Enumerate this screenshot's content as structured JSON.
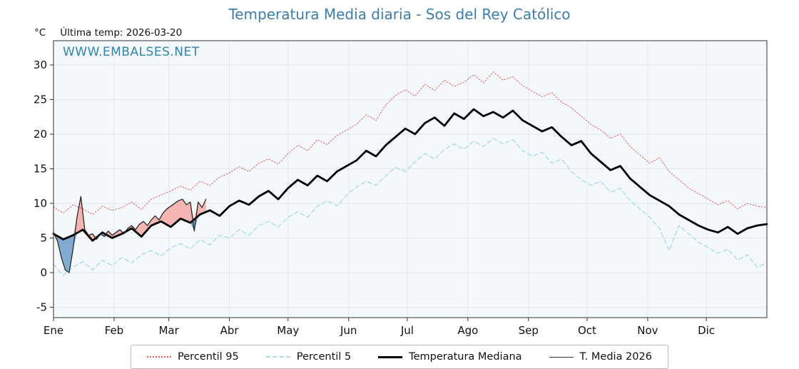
{
  "title": "Temperatura Media diaria - Sos del Rey Católico",
  "header": {
    "y_unit_label": "°C",
    "last_temp_label": "Última temp: 2026-03-20"
  },
  "watermark": "WWW.EMBALSES.NET",
  "colors": {
    "title_blue": "#3d7eaa",
    "watermark_blue": "#2f84ad",
    "plot_bg": "#f4f8fa",
    "grid": "#e2e9ee",
    "border": "#333333",
    "percentil95": "#e05c5c",
    "percentil5": "#a8d9e9",
    "mediana": "#000000",
    "t_media_2026": "#2a2a2a"
  },
  "chart_data": {
    "type": "line",
    "title": "Temperatura Media diaria - Sos del Rey Católico",
    "xlabel": "",
    "ylabel": "°C",
    "grid": true,
    "legend_position": "bottom",
    "x_unit": "day_of_year",
    "xlim": [
      1,
      366
    ],
    "ylim": [
      -6.5,
      33.5
    ],
    "y_ticks": [
      -5,
      0,
      5,
      10,
      15,
      20,
      25,
      30
    ],
    "x_tick_labels": [
      "Ene",
      "Feb",
      "Mar",
      "Abr",
      "May",
      "Jun",
      "Jul",
      "Ago",
      "Sep",
      "Oct",
      "Nov",
      "Dic"
    ],
    "month_start_days": [
      1,
      32,
      60,
      91,
      121,
      152,
      182,
      213,
      244,
      274,
      305,
      335
    ],
    "fill_above_color": "#f4a9a4",
    "fill_below_color": "#6f9ec9",
    "fill_note": "T. Media 2026 filled pink where above Temperatura Mediana, blue where below",
    "series": [
      {
        "name": "Percentil 95",
        "color": "#e05c5c",
        "style": "dotted",
        "width": 1,
        "day_start": 1,
        "day_step": 5,
        "values": [
          9.5,
          8.6,
          9.8,
          9.2,
          8.4,
          9.6,
          9.0,
          9.4,
          10.2,
          9.1,
          10.6,
          11.2,
          11.8,
          12.5,
          11.9,
          13.2,
          12.6,
          13.8,
          14.4,
          15.3,
          14.6,
          15.8,
          16.4,
          15.7,
          17.2,
          18.4,
          17.6,
          19.2,
          18.5,
          19.8,
          20.6,
          21.4,
          22.8,
          22.0,
          24.2,
          25.6,
          26.4,
          25.5,
          27.2,
          26.3,
          27.8,
          26.9,
          27.5,
          28.6,
          27.4,
          29.0,
          27.8,
          28.3,
          27.0,
          26.2,
          25.4,
          26.0,
          24.6,
          23.8,
          22.6,
          21.4,
          20.6,
          19.4,
          20.0,
          18.2,
          17.0,
          15.8,
          16.6,
          14.6,
          13.4,
          12.2,
          11.4,
          10.6,
          9.8,
          10.4,
          9.2,
          10.0,
          9.6,
          9.4
        ]
      },
      {
        "name": "Percentil 5",
        "color": "#a8d9e9",
        "style": "dashed",
        "width": 1.3,
        "day_start": 1,
        "day_step": 5,
        "values": [
          1.2,
          -0.4,
          0.8,
          1.6,
          0.4,
          1.8,
          1.0,
          2.2,
          1.4,
          2.6,
          3.2,
          2.4,
          3.6,
          4.2,
          3.4,
          4.8,
          4.0,
          5.4,
          5.0,
          6.2,
          5.4,
          6.8,
          7.4,
          6.6,
          8.0,
          8.8,
          8.0,
          9.6,
          10.4,
          9.6,
          11.2,
          12.4,
          13.2,
          12.6,
          14.0,
          15.2,
          14.6,
          16.0,
          17.2,
          16.4,
          17.8,
          18.6,
          17.8,
          19.0,
          18.2,
          19.4,
          18.6,
          19.2,
          17.6,
          16.8,
          17.4,
          15.8,
          16.4,
          14.6,
          13.4,
          12.6,
          13.2,
          11.6,
          12.2,
          10.4,
          9.2,
          8.0,
          6.4,
          3.2,
          6.8,
          5.6,
          4.4,
          3.6,
          2.8,
          3.4,
          1.8,
          2.6,
          0.8,
          1.4
        ]
      },
      {
        "name": "Temperatura Mediana",
        "color": "#000000",
        "style": "solid",
        "width": 2.8,
        "day_start": 1,
        "day_step": 5,
        "values": [
          5.6,
          4.8,
          5.4,
          6.2,
          4.6,
          5.8,
          5.0,
          5.6,
          6.4,
          5.2,
          6.8,
          7.4,
          6.6,
          7.8,
          7.2,
          8.4,
          9.0,
          8.2,
          9.6,
          10.4,
          9.8,
          11.0,
          11.8,
          10.6,
          12.2,
          13.4,
          12.6,
          14.0,
          13.2,
          14.6,
          15.4,
          16.2,
          17.6,
          16.8,
          18.4,
          19.6,
          20.8,
          20.0,
          21.6,
          22.4,
          21.2,
          23.0,
          22.2,
          23.6,
          22.6,
          23.2,
          22.4,
          23.4,
          22.0,
          21.2,
          20.4,
          21.0,
          19.6,
          18.4,
          19.0,
          17.2,
          16.0,
          14.8,
          15.4,
          13.6,
          12.4,
          11.2,
          10.4,
          9.6,
          8.4,
          7.6,
          6.8,
          6.2,
          5.8,
          6.6,
          5.6,
          6.4,
          6.8,
          7.0
        ]
      },
      {
        "name": "T. Media 2026",
        "color": "#2a2a2a",
        "style": "solid",
        "width": 1.3,
        "day_start": 1,
        "day_step": 2,
        "values": [
          5.8,
          4.6,
          2.2,
          0.4,
          0.0,
          3.4,
          8.0,
          11.0,
          6.2,
          5.4,
          5.6,
          4.8,
          5.6,
          5.2,
          6.0,
          5.4,
          5.8,
          6.2,
          5.6,
          6.4,
          6.8,
          6.2,
          7.0,
          7.4,
          6.8,
          7.6,
          8.2,
          7.6,
          8.6,
          9.2,
          9.6,
          10.0,
          10.4,
          10.6,
          9.8,
          10.2,
          6.0,
          10.2,
          9.4,
          10.6
        ]
      }
    ]
  },
  "legend": {
    "items": [
      "Percentil 95",
      "Percentil 5",
      "Temperatura Mediana",
      "T. Media 2026"
    ]
  }
}
